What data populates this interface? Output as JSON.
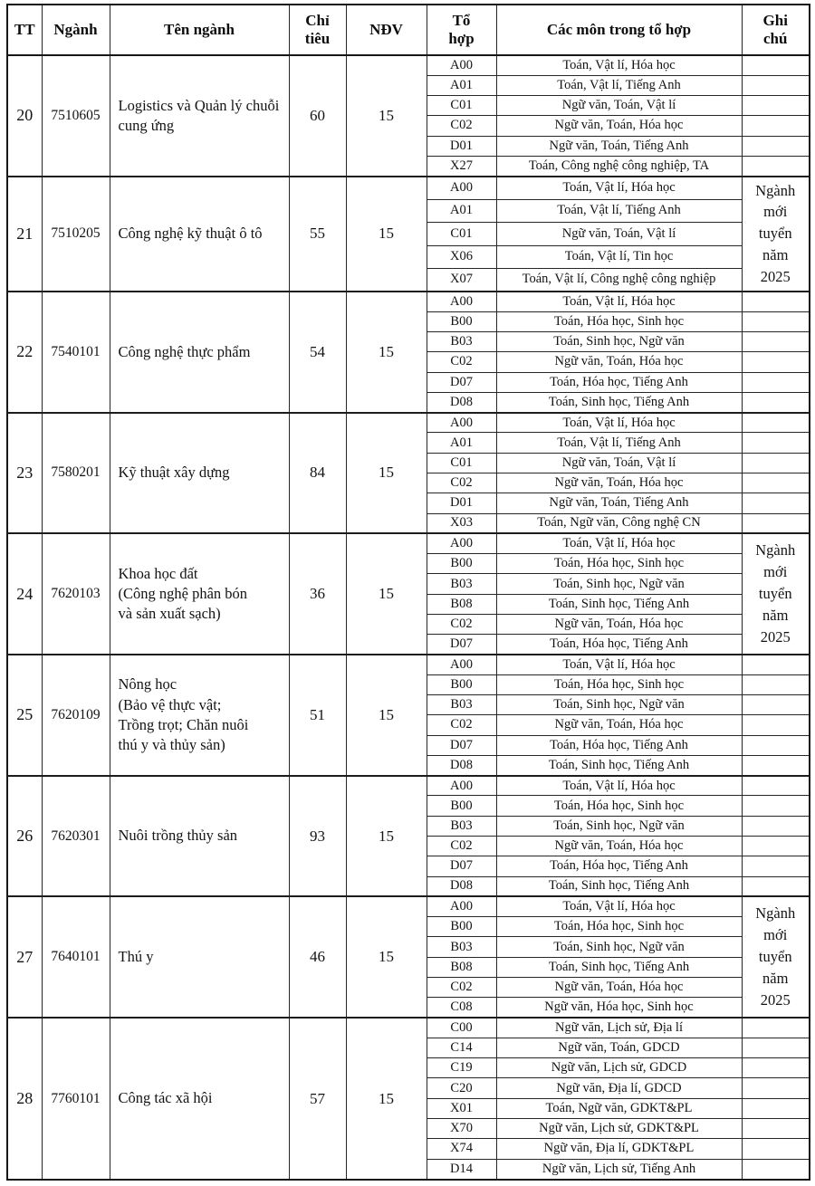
{
  "table": {
    "headers": [
      "TT",
      "Ngành",
      "Tên ngành",
      "Chỉ\ntiêu",
      "NĐV",
      "Tổ\nhợp",
      "Các môn trong tổ hợp",
      "Ghi\nchú"
    ],
    "note_text": "Ngành mới tuyển năm 2025",
    "rows": [
      {
        "tt": "20",
        "code": "7510605",
        "name": "Logistics và Quản lý chuỗi cung ứng",
        "quota": "60",
        "ndv": "15",
        "note": "",
        "combos": [
          {
            "code": "A00",
            "subjects": "Toán, Vật lí, Hóa học"
          },
          {
            "code": "A01",
            "subjects": "Toán, Vật lí, Tiếng Anh"
          },
          {
            "code": "C01",
            "subjects": "Ngữ văn, Toán, Vật lí"
          },
          {
            "code": "C02",
            "subjects": "Ngữ văn, Toán, Hóa học"
          },
          {
            "code": "D01",
            "subjects": "Ngữ văn, Toán, Tiếng Anh"
          },
          {
            "code": "X27",
            "subjects": "Toán, Công nghệ công nghiệp, TA"
          }
        ]
      },
      {
        "tt": "21",
        "code": "7510205",
        "name": "Công nghệ kỹ thuật ô tô",
        "quota": "55",
        "ndv": "15",
        "note": "Ngành mới tuyển năm 2025",
        "combos": [
          {
            "code": "A00",
            "subjects": "Toán, Vật lí, Hóa học"
          },
          {
            "code": "A01",
            "subjects": "Toán, Vật lí, Tiếng Anh"
          },
          {
            "code": "C01",
            "subjects": "Ngữ văn, Toán, Vật lí"
          },
          {
            "code": "X06",
            "subjects": "Toán, Vật lí, Tin học"
          },
          {
            "code": "X07",
            "subjects": "Toán, Vật lí, Công nghệ công nghiệp"
          }
        ]
      },
      {
        "tt": "22",
        "code": "7540101",
        "name": "Công nghệ thực phẩm",
        "quota": "54",
        "ndv": "15",
        "note": "",
        "combos": [
          {
            "code": "A00",
            "subjects": "Toán, Vật lí, Hóa học"
          },
          {
            "code": "B00",
            "subjects": "Toán, Hóa học, Sinh học"
          },
          {
            "code": "B03",
            "subjects": "Toán, Sinh học, Ngữ văn"
          },
          {
            "code": "C02",
            "subjects": "Ngữ văn, Toán, Hóa học"
          },
          {
            "code": "D07",
            "subjects": "Toán, Hóa học, Tiếng Anh"
          },
          {
            "code": "D08",
            "subjects": "Toán, Sinh học, Tiếng Anh"
          }
        ]
      },
      {
        "tt": "23",
        "code": "7580201",
        "name": "Kỹ thuật xây dựng",
        "quota": "84",
        "ndv": "15",
        "note": "",
        "combos": [
          {
            "code": "A00",
            "subjects": "Toán, Vật lí, Hóa học"
          },
          {
            "code": "A01",
            "subjects": "Toán, Vật lí, Tiếng Anh"
          },
          {
            "code": "C01",
            "subjects": "Ngữ văn, Toán, Vật lí"
          },
          {
            "code": "C02",
            "subjects": "Ngữ văn, Toán, Hóa học"
          },
          {
            "code": "D01",
            "subjects": "Ngữ văn, Toán, Tiếng Anh"
          },
          {
            "code": "X03",
            "subjects": "Toán, Ngữ văn, Công nghệ CN"
          }
        ]
      },
      {
        "tt": "24",
        "code": "7620103",
        "name": "Khoa học đất\n(Công nghệ phân bón\nvà sản xuất sạch)",
        "quota": "36",
        "ndv": "15",
        "note": "Ngành mới tuyển năm 2025",
        "combos": [
          {
            "code": "A00",
            "subjects": "Toán, Vật lí, Hóa học"
          },
          {
            "code": "B00",
            "subjects": "Toán, Hóa học, Sinh học"
          },
          {
            "code": "B03",
            "subjects": "Toán, Sinh học, Ngữ văn"
          },
          {
            "code": "B08",
            "subjects": "Toán, Sinh học, Tiếng Anh"
          },
          {
            "code": "C02",
            "subjects": "Ngữ văn, Toán, Hóa học"
          },
          {
            "code": "D07",
            "subjects": "Toán, Hóa học, Tiếng Anh"
          }
        ]
      },
      {
        "tt": "25",
        "code": "7620109",
        "name": "Nông học\n(Bảo vệ thực vật;\nTrồng trọt; Chăn nuôi\nthú y và thủy sản)",
        "quota": "51",
        "ndv": "15",
        "note": "",
        "combos": [
          {
            "code": "A00",
            "subjects": "Toán, Vật lí, Hóa học"
          },
          {
            "code": "B00",
            "subjects": "Toán, Hóa học, Sinh học"
          },
          {
            "code": "B03",
            "subjects": "Toán, Sinh học, Ngữ văn"
          },
          {
            "code": "C02",
            "subjects": "Ngữ văn, Toán, Hóa học"
          },
          {
            "code": "D07",
            "subjects": "Toán, Hóa học, Tiếng Anh"
          },
          {
            "code": "D08",
            "subjects": "Toán, Sinh học, Tiếng Anh"
          }
        ]
      },
      {
        "tt": "26",
        "code": "7620301",
        "name": "Nuôi trồng thủy sản",
        "quota": "93",
        "ndv": "15",
        "note": "",
        "combos": [
          {
            "code": "A00",
            "subjects": "Toán, Vật lí, Hóa học"
          },
          {
            "code": "B00",
            "subjects": "Toán, Hóa học, Sinh học"
          },
          {
            "code": "B03",
            "subjects": "Toán, Sinh học, Ngữ văn"
          },
          {
            "code": "C02",
            "subjects": "Ngữ văn, Toán, Hóa học"
          },
          {
            "code": "D07",
            "subjects": "Toán, Hóa học, Tiếng Anh"
          },
          {
            "code": "D08",
            "subjects": "Toán, Sinh học, Tiếng Anh"
          }
        ]
      },
      {
        "tt": "27",
        "code": "7640101",
        "name": "Thú y",
        "quota": "46",
        "ndv": "15",
        "note": "Ngành mới tuyển năm 2025",
        "combos": [
          {
            "code": "A00",
            "subjects": "Toán, Vật lí, Hóa học"
          },
          {
            "code": "B00",
            "subjects": "Toán, Hóa học, Sinh học"
          },
          {
            "code": "B03",
            "subjects": "Toán, Sinh học, Ngữ văn"
          },
          {
            "code": "B08",
            "subjects": "Toán, Sinh học, Tiếng Anh"
          },
          {
            "code": "C02",
            "subjects": "Ngữ văn, Toán, Hóa học"
          },
          {
            "code": "C08",
            "subjects": "Ngữ văn, Hóa học, Sinh học"
          }
        ]
      },
      {
        "tt": "28",
        "code": "7760101",
        "name": "Công tác xã hội",
        "quota": "57",
        "ndv": "15",
        "note": "",
        "combos": [
          {
            "code": "C00",
            "subjects": "Ngữ văn, Lịch sử, Địa lí"
          },
          {
            "code": "C14",
            "subjects": "Ngữ văn, Toán, GDCD"
          },
          {
            "code": "C19",
            "subjects": "Ngữ văn, Lịch sử, GDCD"
          },
          {
            "code": "C20",
            "subjects": "Ngữ văn, Địa lí, GDCD"
          },
          {
            "code": "X01",
            "subjects": "Toán, Ngữ văn, GDKT&PL"
          },
          {
            "code": "X70",
            "subjects": "Ngữ văn, Lịch sử, GDKT&PL"
          },
          {
            "code": "X74",
            "subjects": "Ngữ văn, Địa lí, GDKT&PL"
          },
          {
            "code": "D14",
            "subjects": "Ngữ văn, Lịch sử, Tiếng Anh"
          }
        ]
      }
    ]
  }
}
